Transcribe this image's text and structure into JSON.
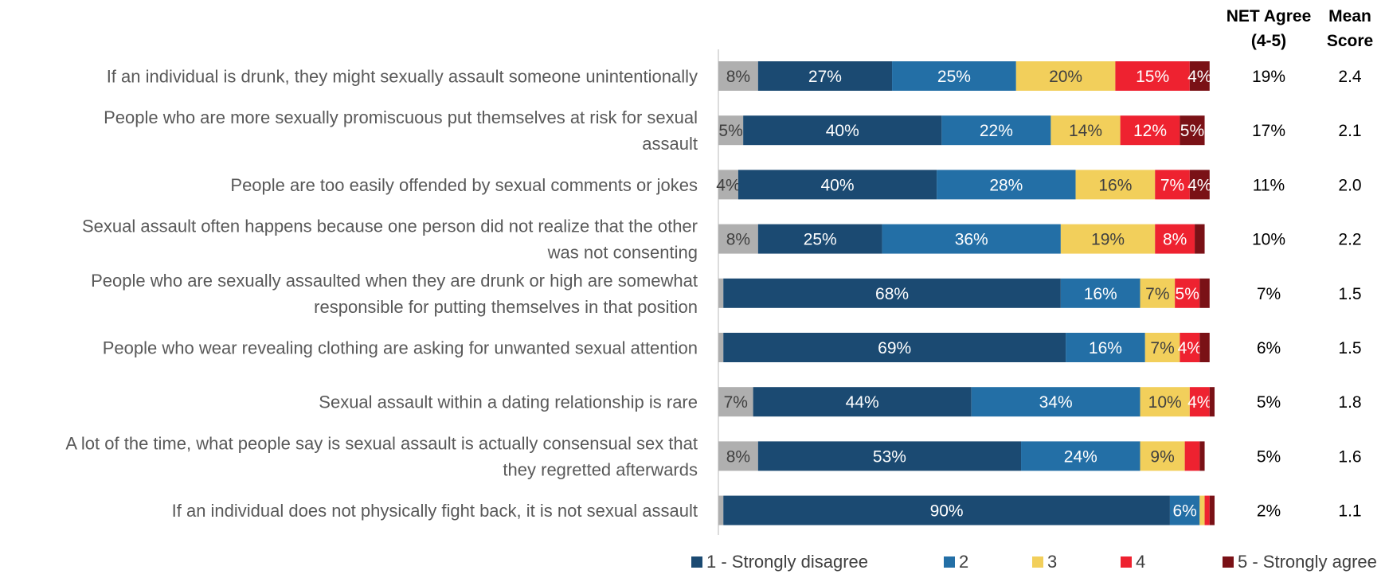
{
  "chart_data": {
    "type": "bar",
    "orientation": "horizontal",
    "stacked": true,
    "categories": [
      "If an individual is drunk, they might sexually assault someone unintentionally",
      "People who are more sexually promiscuous put themselves at risk for sexual assault",
      "People are too easily offended by sexual comments or jokes",
      "Sexual assault often happens because one person did not realize that the other was not consenting",
      "People who are sexually assaulted when they are drunk or high are somewhat responsible for putting themselves in that position",
      "People who wear revealing clothing are asking for unwanted sexual attention",
      "Sexual assault within a dating relationship is rare",
      "A lot of the time, what people say is sexual assault is actually consensual sex that they regretted afterwards",
      "If an individual does not physically fight back, it is not sexual assault"
    ],
    "category_lines": [
      [
        "If an individual is drunk, they might sexually assault someone unintentionally"
      ],
      [
        "People who are more sexually promiscuous put themselves at risk for sexual",
        "assault"
      ],
      [
        "People are too easily offended by sexual comments or jokes"
      ],
      [
        "Sexual assault often happens because one person did not realize that the other",
        "was not consenting"
      ],
      [
        "People who are sexually assaulted when they are drunk or high are somewhat",
        "responsible for putting themselves in that position"
      ],
      [
        "People who wear revealing clothing are asking for unwanted sexual attention"
      ],
      [
        "Sexual assault within a dating relationship is rare"
      ],
      [
        "A lot of the time, what people say is sexual assault is actually consensual sex that",
        "they regretted afterwards"
      ],
      [
        "If an individual does not physically fight back, it is not sexual assault"
      ]
    ],
    "segments": [
      {
        "color": "#afafaf",
        "values": [
          8,
          5,
          4,
          8,
          1,
          1,
          7,
          8,
          1
        ],
        "labels": [
          "8%",
          "5%",
          "4%",
          "8%",
          "",
          "",
          "7%",
          "8%",
          ""
        ]
      },
      {
        "name": "1 - Strongly disagree",
        "color": "#1b4a72",
        "values": [
          27,
          40,
          40,
          25,
          68,
          69,
          44,
          53,
          90
        ],
        "labels": [
          "27%",
          "40%",
          "40%",
          "25%",
          "68%",
          "69%",
          "44%",
          "53%",
          "90%"
        ]
      },
      {
        "name": "2",
        "color": "#236fa6",
        "values": [
          25,
          22,
          28,
          36,
          16,
          16,
          34,
          24,
          6
        ],
        "labels": [
          "25%",
          "22%",
          "28%",
          "36%",
          "16%",
          "16%",
          "34%",
          "24%",
          "6%"
        ]
      },
      {
        "name": "3",
        "color": "#f2cf5b",
        "values": [
          20,
          14,
          16,
          19,
          7,
          7,
          10,
          9,
          1
        ],
        "labels": [
          "20%",
          "14%",
          "16%",
          "19%",
          "7%",
          "7%",
          "10%",
          "9%",
          ""
        ]
      },
      {
        "name": "4",
        "color": "#ee2230",
        "values": [
          15,
          12,
          7,
          8,
          5,
          4,
          4,
          3,
          1
        ],
        "labels": [
          "15%",
          "12%",
          "7%",
          "8%",
          "5%",
          "4%",
          "4%",
          "",
          ""
        ]
      },
      {
        "name": "5 - Strongly agree",
        "color": "#7a1116",
        "values": [
          4,
          5,
          4,
          2,
          2,
          2,
          1,
          1,
          1
        ],
        "labels": [
          "4%",
          "5%",
          "4%",
          "",
          "",
          "",
          "",
          "",
          ""
        ]
      }
    ],
    "xlim": [
      0,
      100
    ],
    "legend_position": "bottom",
    "extra_columns": [
      {
        "header": [
          "NET Agree",
          "(4-5)"
        ],
        "values": [
          "19%",
          "17%",
          "11%",
          "10%",
          "7%",
          "6%",
          "5%",
          "5%",
          "2%"
        ]
      },
      {
        "header": [
          "Mean",
          "Score"
        ],
        "values": [
          "2.4",
          "2.1",
          "2.0",
          "2.2",
          "1.5",
          "1.5",
          "1.8",
          "1.6",
          "1.1"
        ]
      }
    ]
  }
}
